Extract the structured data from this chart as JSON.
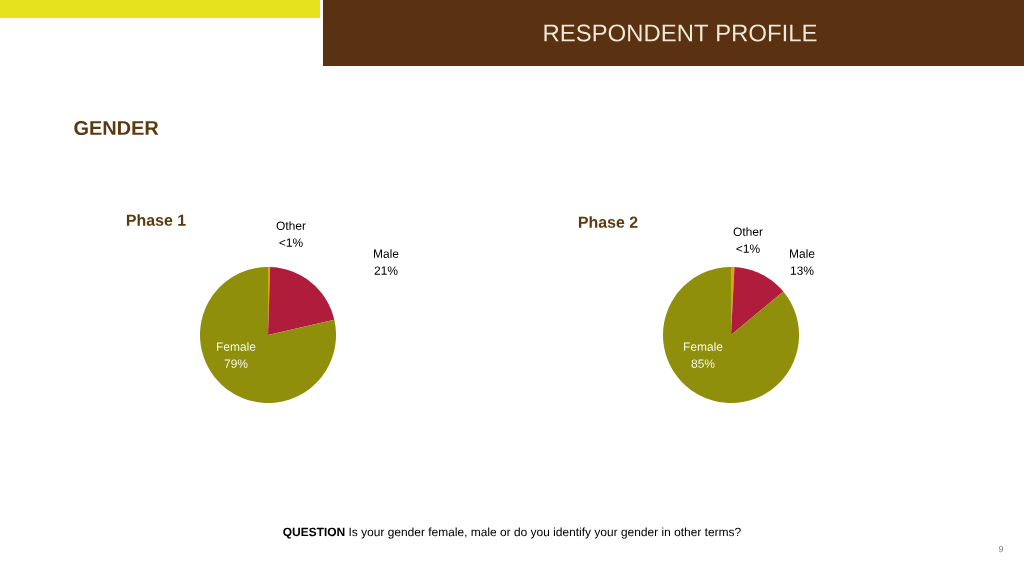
{
  "chart_data": [
    {
      "type": "pie",
      "title": "Phase 1",
      "categories": [
        "Other",
        "Male",
        "Female"
      ],
      "values": [
        0.5,
        21,
        79
      ],
      "value_labels": [
        "<1%",
        "21%",
        "79%"
      ],
      "colors": [
        "#e0a020",
        "#b01c3c",
        "#8f8f0c"
      ],
      "annotations": [
        "RESPONDENT PROFILE",
        "GENDER"
      ]
    },
    {
      "type": "pie",
      "title": "Phase 2",
      "categories": [
        "Other",
        "Male",
        "Female"
      ],
      "values": [
        0.8,
        13,
        85
      ],
      "value_labels": [
        "<1%",
        "13%",
        "85%"
      ],
      "colors": [
        "#e0a020",
        "#b01c3c",
        "#8f8f0c"
      ],
      "annotations": [
        "**QUESTION** Is your gender female, male or do you identify your gender in other terms?",
        "9"
      ]
    }
  ]
}
